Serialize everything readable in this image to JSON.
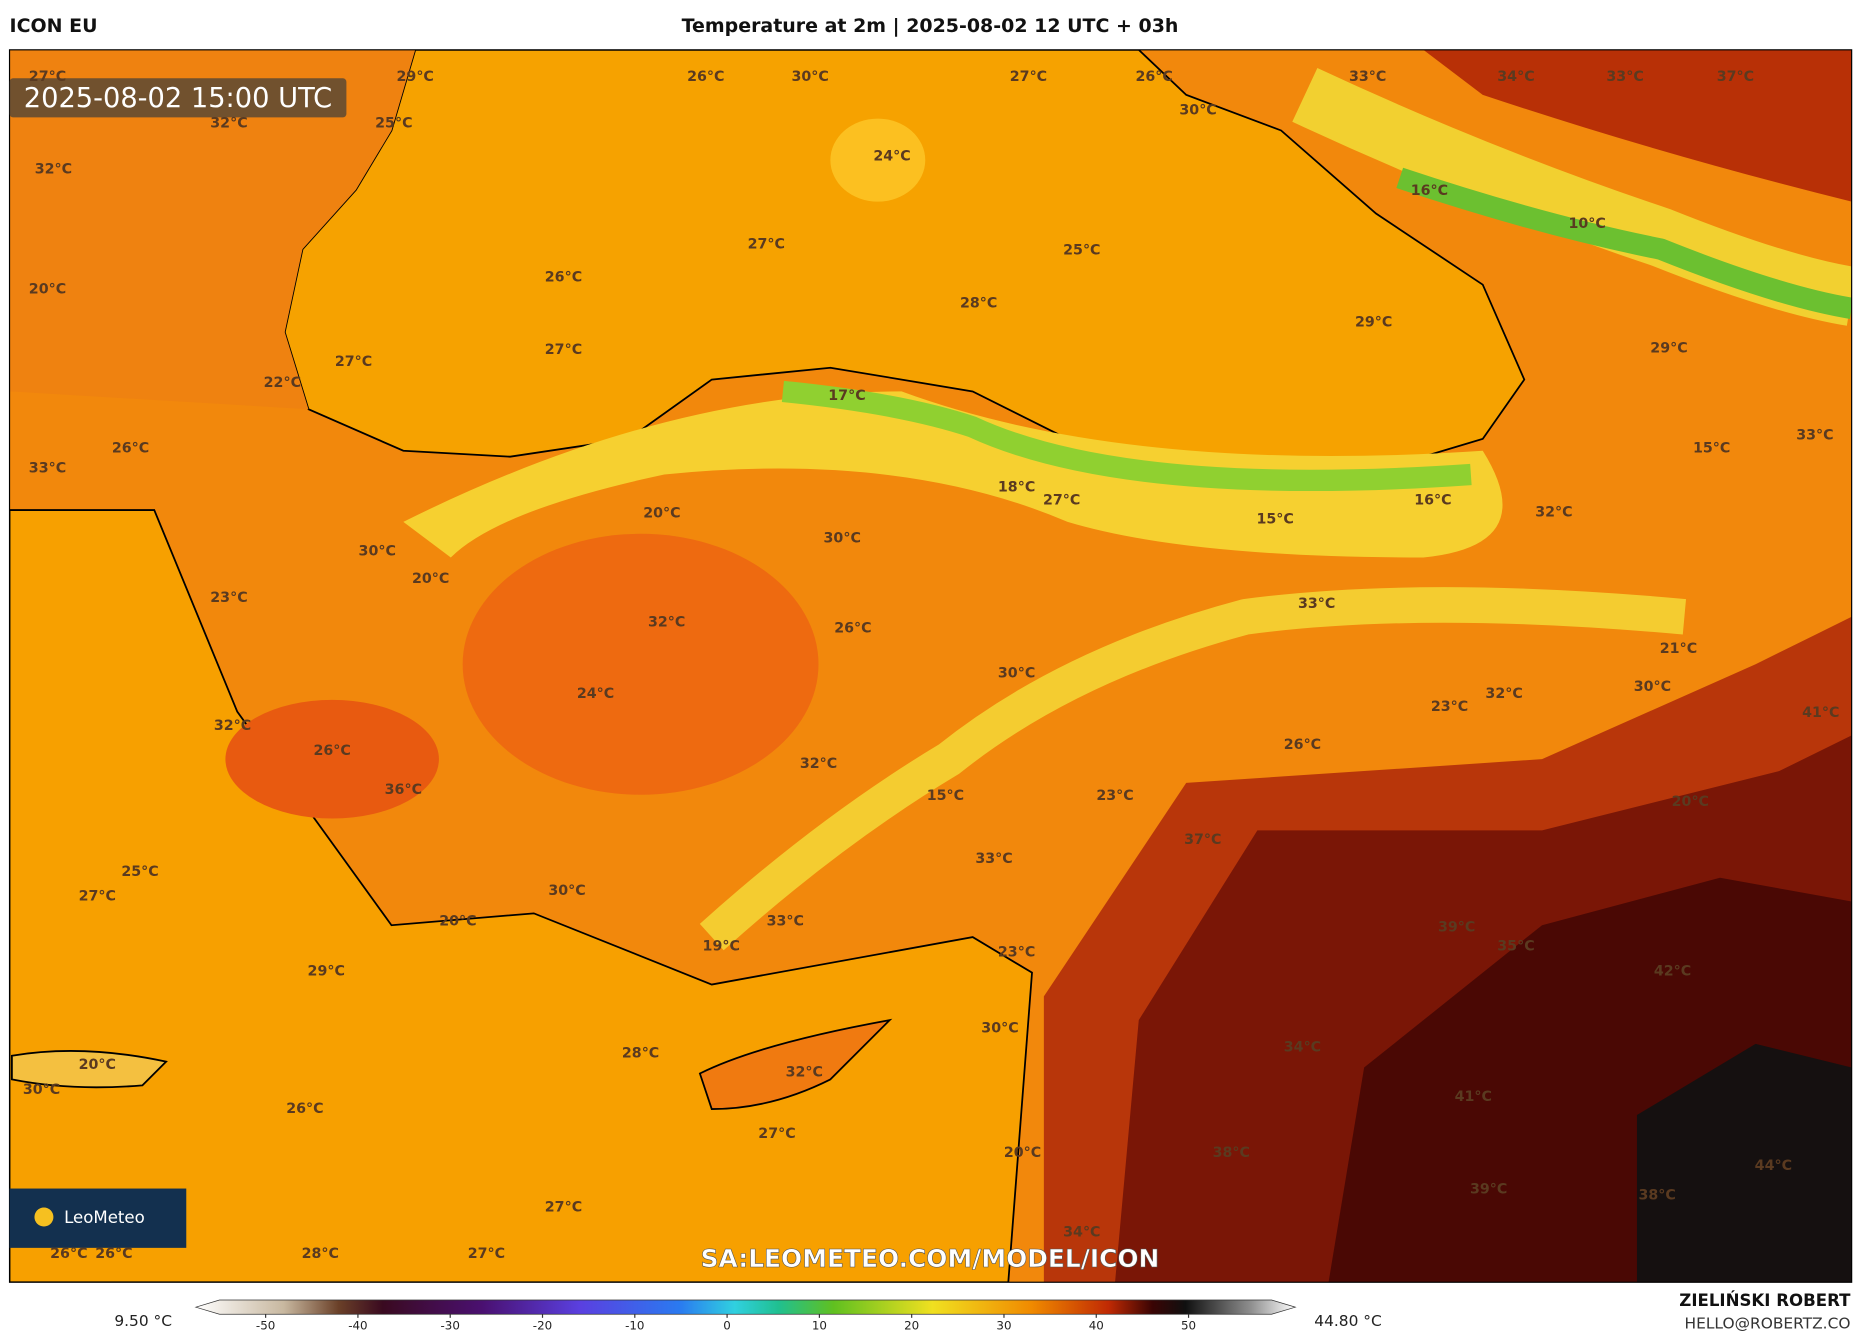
{
  "header": {
    "model": "ICON EU",
    "title": "Temperature at 2m | 2025-08-02 12 UTC + 03h"
  },
  "map": {
    "timestamp": "2025-08-02 15:00 UTC",
    "watermark": "SA:LEOMETEO.COM/MODEL/ICON",
    "logo": "LeoMeteo",
    "labels": [
      "27°C",
      "29°C",
      "26°C",
      "30°C",
      "27°C",
      "26°C",
      "33°C",
      "34°C",
      "33°C",
      "37°C",
      "32°C",
      "25°C",
      "30°C",
      "24°C",
      "32°C",
      "16°C",
      "10°C",
      "27°C",
      "25°C",
      "26°C",
      "20°C",
      "28°C",
      "29°C",
      "27°C",
      "27°C",
      "29°C",
      "22°C",
      "17°C",
      "26°C",
      "33°C",
      "15°C",
      "33°C",
      "18°C",
      "27°C",
      "16°C",
      "20°C",
      "15°C",
      "32°C",
      "30°C",
      "30°C",
      "20°C",
      "23°C",
      "33°C",
      "32°C",
      "26°C",
      "21°C",
      "30°C",
      "24°C",
      "23°C",
      "32°C",
      "30°C",
      "41°C",
      "32°C",
      "26°C",
      "26°C",
      "32°C",
      "36°C",
      "15°C",
      "23°C",
      "20°C",
      "37°C",
      "33°C",
      "25°C",
      "27°C",
      "30°C",
      "20°C",
      "39°C",
      "33°C",
      "19°C",
      "35°C",
      "23°C",
      "29°C",
      "42°C",
      "30°C",
      "34°C",
      "28°C",
      "20°C",
      "32°C",
      "30°C",
      "41°C",
      "26°C",
      "27°C",
      "20°C",
      "38°C",
      "44°C",
      "39°C",
      "38°C",
      "27°C",
      "34°C",
      "26°C",
      "26°C",
      "28°C",
      "27°C"
    ]
  },
  "colorbar": {
    "min_label": "9.50 °C",
    "max_label": "44.80 °C",
    "range": [
      -55,
      59
    ],
    "ticks": [
      -50,
      -40,
      -30,
      -20,
      -10,
      0,
      10,
      20,
      30,
      40,
      50
    ]
  },
  "footer": {
    "author": "ZIELIŃSKI ROBERT",
    "email": "HELLO@ROBERTZ.CO"
  }
}
